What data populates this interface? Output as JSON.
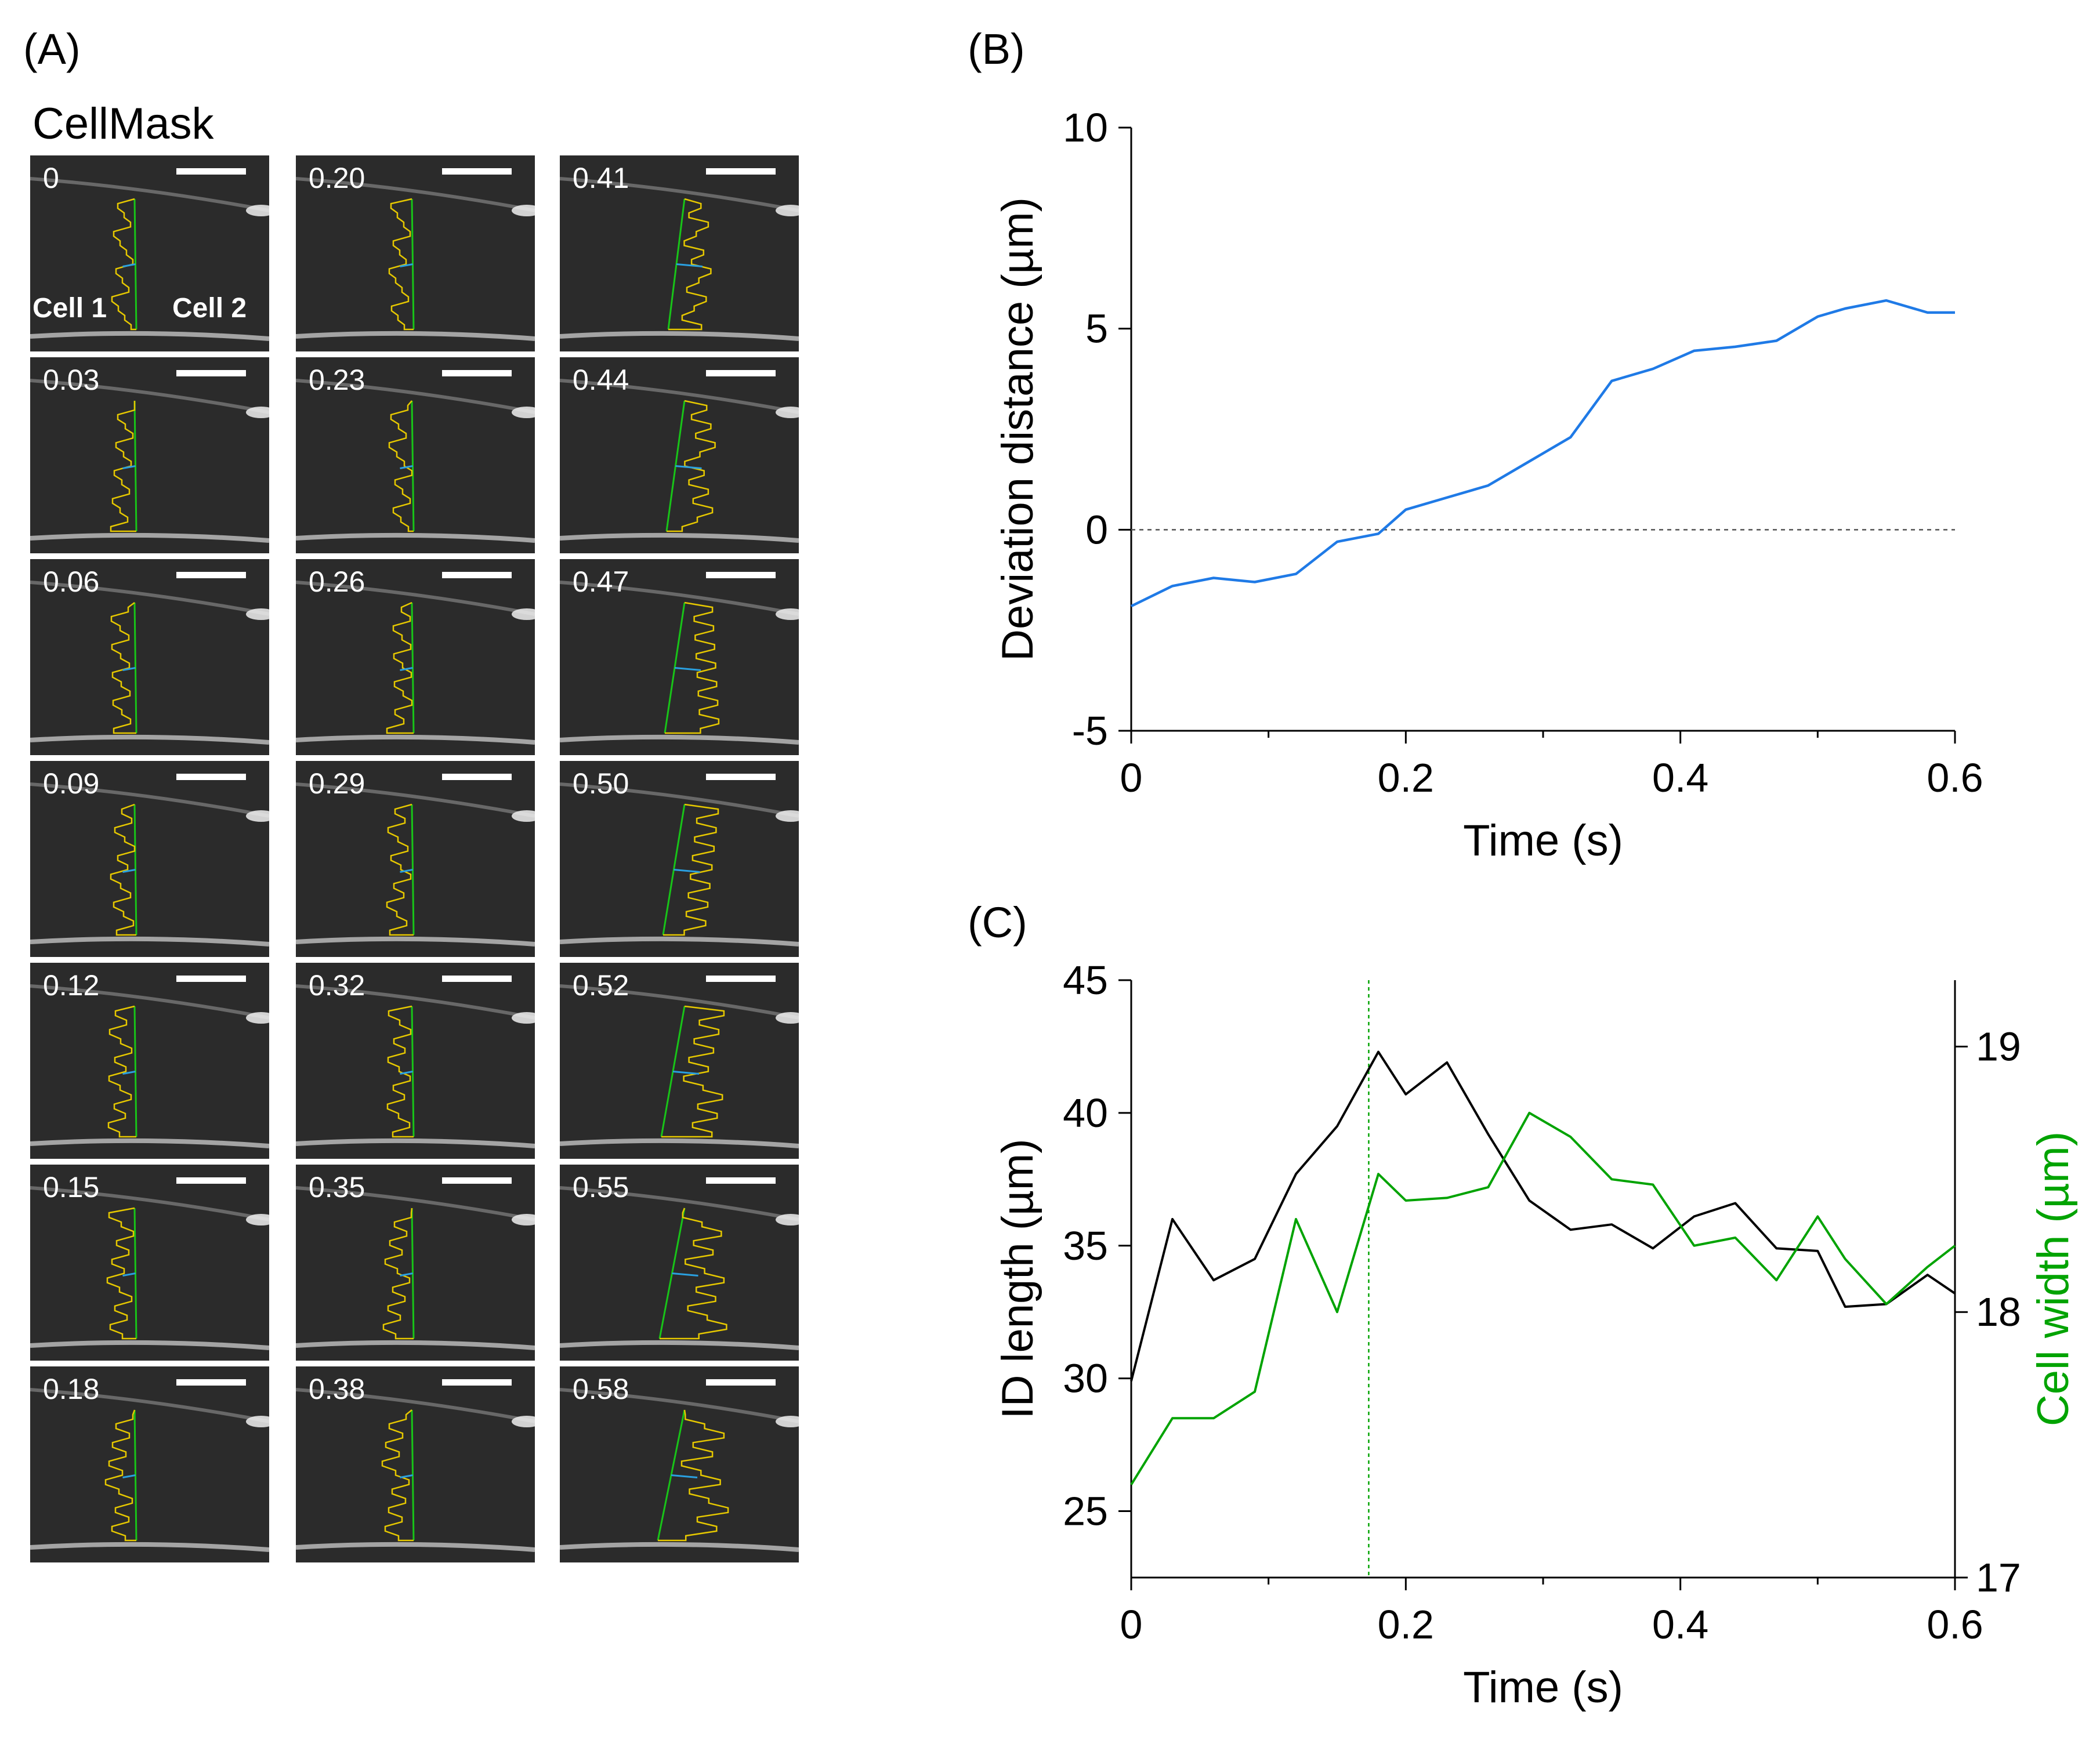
{
  "panels": {
    "a_label": "(A)",
    "b_label": "(B)",
    "c_label": "(C)"
  },
  "panel_a": {
    "title": "CellMask",
    "cell1_label": "Cell 1",
    "cell2_label": "Cell 2",
    "columns": [
      [
        "0",
        "0.03",
        "0.06",
        "0.09",
        "0.12",
        "0.15",
        "0.18"
      ],
      [
        "0.20",
        "0.23",
        "0.26",
        "0.29",
        "0.32",
        "0.35",
        "0.38"
      ],
      [
        "0.41",
        "0.44",
        "0.47",
        "0.50",
        "0.52",
        "0.55",
        "0.58"
      ]
    ]
  },
  "colors": {
    "deviation_line": "#1f7ae6",
    "id_length_line": "#000000",
    "cell_width_line": "#00a300",
    "yellow_contour": "#e6c800",
    "green_line": "#18c418",
    "blue_segment": "#2aa0e0"
  },
  "chart_data": [
    {
      "type": "line",
      "panel": "B",
      "xlabel": "Time (s)",
      "ylabel": "Deviation distance (µm)",
      "xlim": [
        0,
        0.6
      ],
      "ylim": [
        -5,
        10
      ],
      "xticks": [
        "0",
        "0.2",
        "0.4",
        "0.6"
      ],
      "yticks": [
        "-5",
        "0",
        "5",
        "10"
      ],
      "reference_line_y": 0,
      "series": [
        {
          "name": "Deviation distance",
          "x": [
            0,
            0.03,
            0.06,
            0.09,
            0.12,
            0.15,
            0.18,
            0.2,
            0.23,
            0.26,
            0.29,
            0.32,
            0.35,
            0.38,
            0.41,
            0.44,
            0.47,
            0.5,
            0.52,
            0.55,
            0.58,
            0.6
          ],
          "values": [
            -1.9,
            -1.4,
            -1.2,
            -1.3,
            -1.1,
            -0.3,
            -0.1,
            0.5,
            0.8,
            1.1,
            1.7,
            2.3,
            3.7,
            4.0,
            4.45,
            4.55,
            4.7,
            5.3,
            5.5,
            5.7,
            5.4,
            5.4
          ]
        }
      ]
    },
    {
      "type": "line",
      "panel": "C",
      "xlabel": "Time (s)",
      "ylabel_left": "ID length (µm)",
      "ylabel_right": "Cell width (µm)",
      "xlim": [
        0,
        0.6
      ],
      "ylim_left": [
        22.5,
        45
      ],
      "ylim_right": [
        17,
        19.25
      ],
      "xticks": [
        "0",
        "0.2",
        "0.4",
        "0.6"
      ],
      "yticks_left": [
        "25",
        "30",
        "35",
        "40",
        "45"
      ],
      "yticks_right": [
        "17",
        "18",
        "19"
      ],
      "vertical_marker_x": 0.173,
      "series": [
        {
          "name": "ID length",
          "axis": "left",
          "x": [
            0,
            0.03,
            0.06,
            0.09,
            0.12,
            0.15,
            0.18,
            0.2,
            0.23,
            0.26,
            0.29,
            0.32,
            0.35,
            0.38,
            0.41,
            0.44,
            0.47,
            0.5,
            0.52,
            0.55,
            0.58,
            0.6
          ],
          "values": [
            29.9,
            36.0,
            33.7,
            34.5,
            37.7,
            39.5,
            42.3,
            40.7,
            41.9,
            39.2,
            36.7,
            35.6,
            35.8,
            34.9,
            36.1,
            36.6,
            34.9,
            34.8,
            32.7,
            32.8,
            33.9,
            33.2
          ]
        },
        {
          "name": "Cell width",
          "axis": "right",
          "x": [
            0,
            0.03,
            0.06,
            0.09,
            0.12,
            0.15,
            0.18,
            0.2,
            0.23,
            0.26,
            0.29,
            0.32,
            0.35,
            0.38,
            0.41,
            0.44,
            0.47,
            0.5,
            0.52,
            0.55,
            0.58,
            0.6
          ],
          "values": [
            17.35,
            17.6,
            17.6,
            17.7,
            18.35,
            18.0,
            18.52,
            18.42,
            18.43,
            18.47,
            18.75,
            18.66,
            18.5,
            18.48,
            18.25,
            18.28,
            18.12,
            18.36,
            18.2,
            18.03,
            18.17,
            18.25
          ]
        }
      ]
    }
  ]
}
